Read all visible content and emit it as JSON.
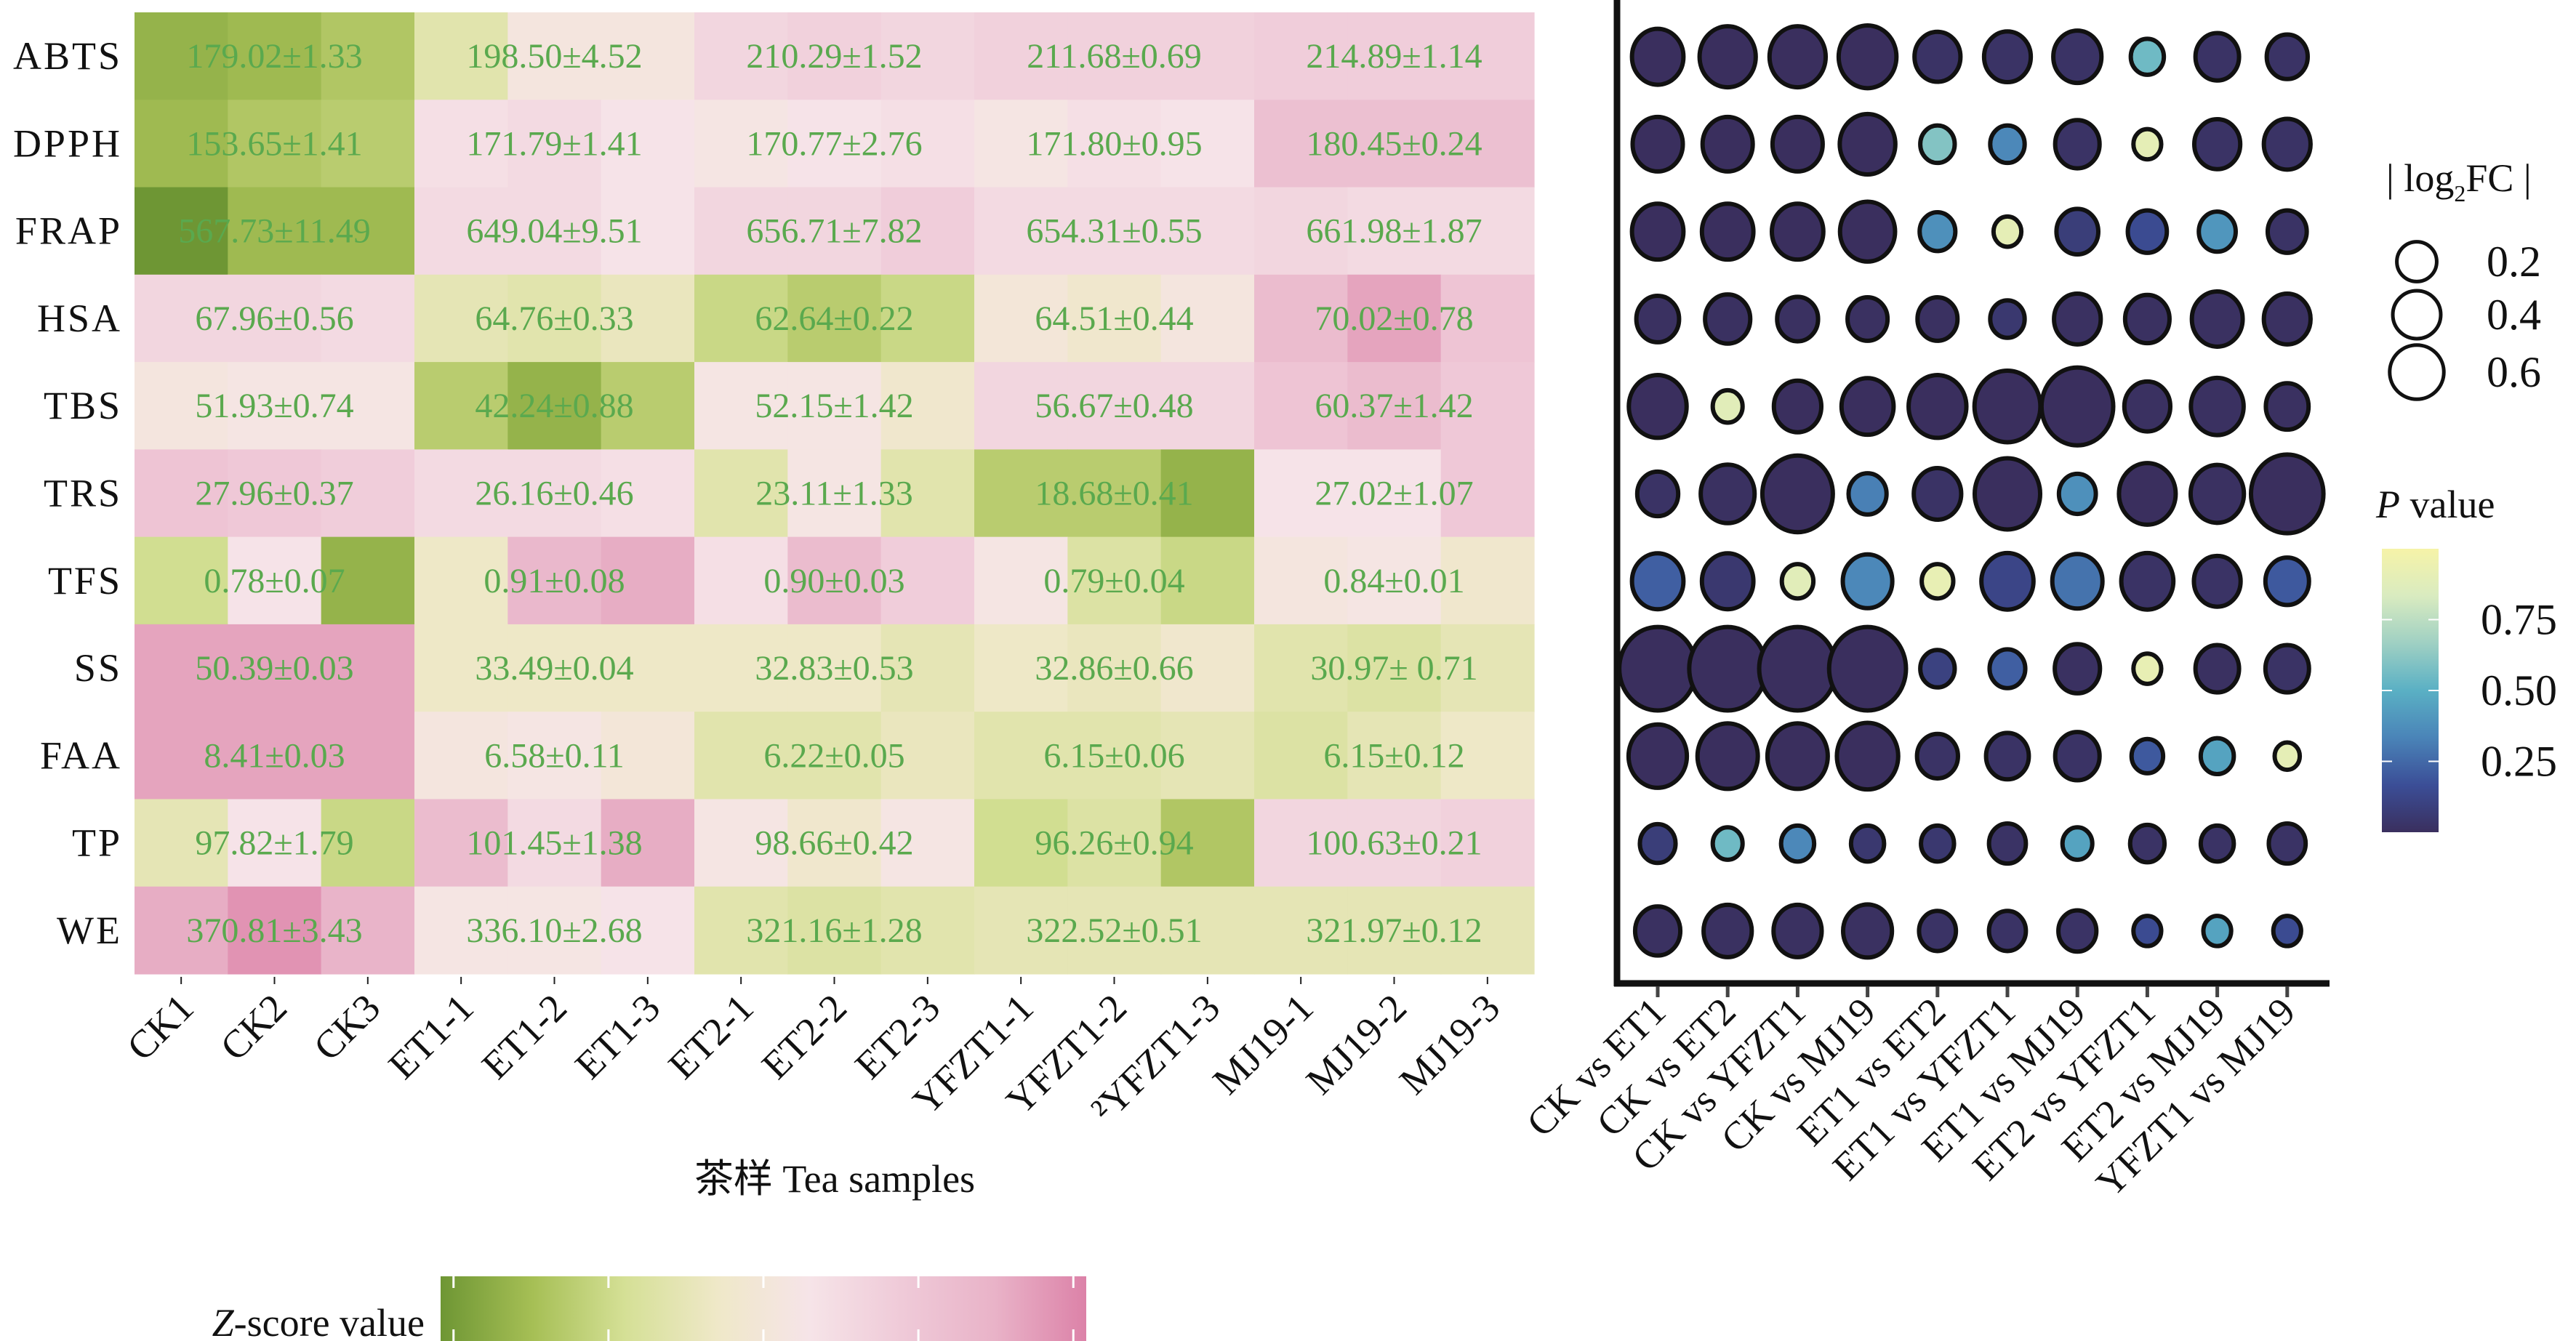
{
  "chart_data": [
    {
      "type": "heatmap",
      "title": "",
      "xlabel": "茶样 Tea samples",
      "ylabel": "",
      "rows": [
        "ABTS",
        "DPPH",
        "FRAP",
        "HSA",
        "TBS",
        "TRS",
        "TFS",
        "SS",
        "FAA",
        "TP",
        "WE"
      ],
      "columns": [
        "CK1",
        "CK2",
        "CK3",
        "ET1-1",
        "ET1-2",
        "ET1-3",
        "ET2-1",
        "ET2-2",
        "ET2-3",
        "YFZT1-1",
        "YFZT1-2",
        "²YFZT1-3",
        "MJ19-1",
        "MJ19-2",
        "MJ19-3"
      ],
      "groups": [
        "CK",
        "ET1",
        "ET2",
        "YFZT1",
        "MJ19"
      ],
      "annotations": [
        [
          "179.02±1.33",
          "198.50±4.52",
          "210.29±1.52",
          "211.68±0.69",
          "214.89±1.14"
        ],
        [
          "153.65±1.41",
          "171.79±1.41",
          "170.77±2.76",
          "171.80±0.95",
          "180.45±0.24"
        ],
        [
          "567.73±11.49",
          "649.04±9.51",
          "656.71±7.82",
          "654.31±0.55",
          "661.98±1.87"
        ],
        [
          "67.96±0.56",
          "64.76±0.33",
          "62.64±0.22",
          "64.51±0.44",
          "70.02±0.78"
        ],
        [
          "51.93±0.74",
          "42.24±0.88",
          "52.15±1.42",
          "56.67±0.48",
          "60.37±1.42"
        ],
        [
          "27.96±0.37",
          "26.16±0.46",
          "23.11±1.33",
          "18.68±0.41",
          "27.02±1.07"
        ],
        [
          "0.78±0.07",
          "0.91±0.08",
          "0.90±0.03",
          "0.79±0.04",
          "0.84±0.01"
        ],
        [
          "50.39±0.03",
          "33.49±0.04",
          "32.83±0.53",
          "32.86±0.66",
          "30.97± 0.71"
        ],
        [
          "8.41±0.03",
          "6.58±0.11",
          "6.22±0.05",
          "6.15±0.06",
          "6.15±0.12"
        ],
        [
          "97.82±1.79",
          "101.45±1.38",
          "98.66±0.42",
          "96.26±0.94",
          "100.63±0.21"
        ],
        [
          "370.81±3.43",
          "336.10±2.68",
          "321.16±1.28",
          "322.52±0.51",
          "321.97±0.12"
        ]
      ],
      "z_values": [
        [
          -1.6,
          -1.5,
          -1.3,
          -0.6,
          0.1,
          0.1,
          0.6,
          0.7,
          0.6,
          0.7,
          0.7,
          0.7,
          0.8,
          0.8,
          0.8
        ],
        [
          -1.5,
          -1.3,
          -1.2,
          0.4,
          0.5,
          0.3,
          0.2,
          0.3,
          0.4,
          0.2,
          0.4,
          0.3,
          1.1,
          1.1,
          1.1
        ],
        [
          -2.1,
          -1.5,
          -1.5,
          0.5,
          0.5,
          0.3,
          0.6,
          0.6,
          0.8,
          0.5,
          0.5,
          0.5,
          0.6,
          0.5,
          0.5
        ],
        [
          0.6,
          0.6,
          0.5,
          -0.5,
          -0.6,
          -0.4,
          -1.0,
          -1.2,
          -1.0,
          0.0,
          -0.2,
          0.1,
          1.2,
          1.6,
          1.0
        ],
        [
          0.1,
          0.2,
          0.2,
          -1.2,
          -1.6,
          -1.2,
          0.2,
          0.2,
          -0.2,
          0.6,
          0.6,
          0.6,
          1.0,
          1.2,
          0.9
        ],
        [
          1.0,
          0.9,
          0.8,
          0.5,
          0.5,
          0.4,
          -0.6,
          0.2,
          -0.6,
          -1.2,
          -1.2,
          -1.6,
          0.3,
          0.3,
          0.9
        ],
        [
          -0.9,
          0.3,
          -1.6,
          -0.3,
          1.3,
          1.5,
          0.4,
          1.2,
          0.8,
          0.2,
          -0.7,
          -1.0,
          0.1,
          0.2,
          -0.2
        ],
        [
          1.6,
          1.6,
          1.6,
          -0.3,
          -0.3,
          -0.3,
          -0.3,
          -0.3,
          -0.5,
          -0.3,
          -0.4,
          -0.2,
          -0.6,
          -0.7,
          -0.5
        ],
        [
          1.6,
          1.6,
          1.6,
          0.1,
          0.2,
          0.0,
          -0.6,
          -0.6,
          -0.4,
          -0.6,
          -0.6,
          -0.5,
          -0.7,
          -0.5,
          -0.3
        ],
        [
          -0.5,
          0.3,
          -1.0,
          1.2,
          0.5,
          1.5,
          0.2,
          -0.2,
          0.2,
          -0.9,
          -0.7,
          -1.3,
          0.6,
          0.6,
          0.7
        ],
        [
          1.5,
          1.8,
          1.4,
          0.2,
          0.2,
          0.3,
          -0.6,
          -0.7,
          -0.6,
          -0.5,
          -0.5,
          -0.5,
          -0.5,
          -0.5,
          -0.5
        ]
      ],
      "color_scale": {
        "label": "Z-score value",
        "range": [
          -2,
          2
        ],
        "colors": [
          "#6e9634",
          "#a6bf55",
          "#d5e096",
          "#efe8c8",
          "#f6e4e8",
          "#efcad8",
          "#e9b3c8",
          "#dc82a8"
        ]
      }
    },
    {
      "type": "scatter",
      "subtype": "bubble",
      "title": "",
      "rows": [
        "ABTS",
        "DPPH",
        "FRAP",
        "HSA",
        "TBS",
        "TRS",
        "TFS",
        "SS",
        "FAA",
        "TP",
        "WE"
      ],
      "comparisons": [
        "CK vs ET1",
        "CK vs ET2",
        "CK vs YFZT1",
        "CK vs MJ19",
        "ET1 vs ET2",
        "ET1 vs YFZT1",
        "ET1 vs MJ19",
        "ET2 vs YFZT1",
        "ET2 vs MJ19",
        "YFZT1 vs MJ19"
      ],
      "abs_log2fc": [
        [
          0.26,
          0.34,
          0.34,
          0.37,
          0.18,
          0.19,
          0.21,
          0.05,
          0.15,
          0.12
        ],
        [
          0.24,
          0.24,
          0.24,
          0.33,
          0.06,
          0.06,
          0.16,
          0.02,
          0.18,
          0.19
        ],
        [
          0.26,
          0.26,
          0.26,
          0.32,
          0.07,
          0.02,
          0.13,
          0.1,
          0.08,
          0.1
        ],
        [
          0.14,
          0.17,
          0.12,
          0.11,
          0.11,
          0.06,
          0.19,
          0.16,
          0.25,
          0.19
        ],
        [
          0.37,
          0.03,
          0.2,
          0.27,
          0.37,
          0.54,
          0.68,
          0.18,
          0.28,
          0.14
        ],
        [
          0.12,
          0.3,
          0.65,
          0.09,
          0.2,
          0.53,
          0.08,
          0.35,
          0.29,
          0.7
        ],
        [
          0.26,
          0.26,
          0.04,
          0.23,
          0.04,
          0.27,
          0.24,
          0.27,
          0.19,
          0.15
        ],
        [
          0.82,
          0.82,
          0.82,
          0.82,
          0.06,
          0.07,
          0.17,
          0.02,
          0.15,
          0.15
        ],
        [
          0.38,
          0.42,
          0.42,
          0.44,
          0.12,
          0.14,
          0.16,
          0.04,
          0.05,
          0.01
        ],
        [
          0.07,
          0.03,
          0.05,
          0.05,
          0.05,
          0.08,
          0.03,
          0.06,
          0.05,
          0.08
        ],
        [
          0.17,
          0.21,
          0.21,
          0.22,
          0.08,
          0.08,
          0.09,
          0.02,
          0.02,
          0.02
        ]
      ],
      "p_values": [
        [
          0.0,
          0.0,
          0.0,
          0.0,
          0.02,
          0.02,
          0.02,
          0.55,
          0.02,
          0.02
        ],
        [
          0.0,
          0.0,
          0.0,
          0.0,
          0.6,
          0.35,
          0.02,
          0.9,
          0.02,
          0.02
        ],
        [
          0.0,
          0.0,
          0.0,
          0.0,
          0.38,
          0.9,
          0.08,
          0.15,
          0.4,
          0.02
        ],
        [
          0.01,
          0.01,
          0.01,
          0.01,
          0.01,
          0.05,
          0.01,
          0.01,
          0.01,
          0.01
        ],
        [
          0.0,
          0.88,
          0.0,
          0.0,
          0.0,
          0.0,
          0.0,
          0.01,
          0.01,
          0.01
        ],
        [
          0.02,
          0.01,
          0.0,
          0.32,
          0.02,
          0.0,
          0.38,
          0.0,
          0.01,
          0.0
        ],
        [
          0.22,
          0.05,
          0.88,
          0.35,
          0.92,
          0.12,
          0.28,
          0.02,
          0.02,
          0.2
        ],
        [
          0.0,
          0.0,
          0.0,
          0.0,
          0.1,
          0.22,
          0.01,
          0.92,
          0.01,
          0.02
        ],
        [
          0.0,
          0.0,
          0.0,
          0.0,
          0.02,
          0.02,
          0.02,
          0.2,
          0.45,
          0.9
        ],
        [
          0.08,
          0.55,
          0.35,
          0.05,
          0.05,
          0.02,
          0.45,
          0.02,
          0.02,
          0.02
        ],
        [
          0.01,
          0.01,
          0.01,
          0.01,
          0.02,
          0.02,
          0.02,
          0.15,
          0.45,
          0.15
        ]
      ],
      "size_legend": {
        "title_prefix": "| log",
        "title_subscript": "2",
        "title_suffix": "FC |",
        "values": [
          0.2,
          0.4,
          0.6
        ],
        "labels": [
          "0.2",
          "0.4",
          "0.6"
        ]
      },
      "color_legend": {
        "title_italic": "P",
        "title_rest": " value",
        "ticks": [
          0.25,
          0.5,
          0.75
        ],
        "tick_labels": [
          "0.25",
          "0.50",
          "0.75"
        ],
        "range": [
          0,
          1
        ],
        "colors": [
          "#3a2f5e",
          "#3b4e97",
          "#4a84b8",
          "#5ab0c4",
          "#9fd0c3",
          "#d9ebc0",
          "#f6f3a8"
        ]
      }
    }
  ]
}
